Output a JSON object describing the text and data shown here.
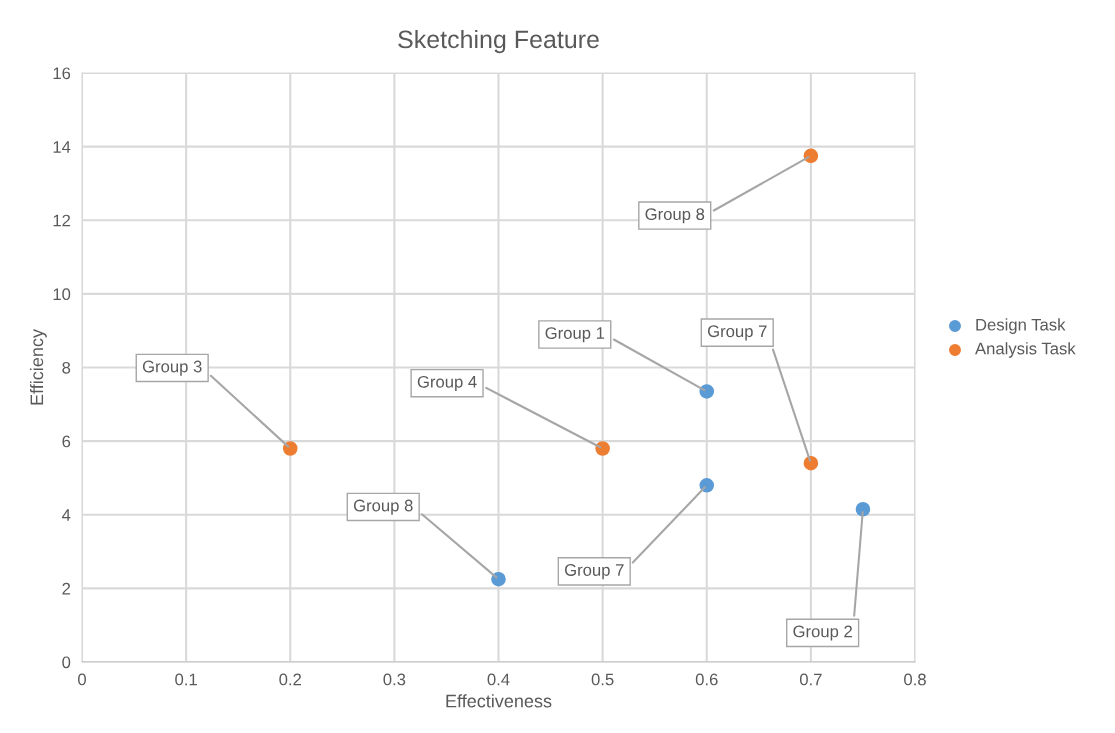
{
  "chart_data": {
    "type": "scatter",
    "title": "Sketching Feature",
    "xlabel": "Effectiveness",
    "ylabel": "Efficiency",
    "series": [
      {
        "name": "Design Task",
        "color": "#5b9bd5",
        "x": [
          0.6,
          0.6,
          0.4,
          0.75
        ],
        "values": [
          7.35,
          4.8,
          2.25,
          4.15
        ]
      },
      {
        "name": "Analysis Task",
        "color": "#ed7d31",
        "x": [
          0.7,
          0.2,
          0.5,
          0.7
        ],
        "values": [
          13.75,
          5.8,
          5.8,
          5.4
        ]
      }
    ],
    "annotations": [
      {
        "text": "Group 1",
        "x": 0.6,
        "y": 7.35
      },
      {
        "text": "Group 7",
        "x": 0.6,
        "y": 4.8
      },
      {
        "text": "Group 8",
        "x": 0.4,
        "y": 2.25
      },
      {
        "text": "Group 2",
        "x": 0.75,
        "y": 4.15
      },
      {
        "text": "Group 8",
        "x": 0.7,
        "y": 13.75
      },
      {
        "text": "Group 3",
        "x": 0.2,
        "y": 5.8
      },
      {
        "text": "Group 4",
        "x": 0.5,
        "y": 5.8
      },
      {
        "text": "Group 7",
        "x": 0.7,
        "y": 5.4
      }
    ],
    "xlim": [
      0,
      0.8
    ],
    "xticks": [
      0,
      0.1,
      0.2,
      0.3,
      0.4,
      0.5,
      0.6,
      0.7,
      0.8
    ],
    "ylim": [
      0,
      16
    ],
    "yticks": [
      0,
      2,
      4,
      6,
      8,
      10,
      12,
      14,
      16
    ],
    "grid": true,
    "legend": "right",
    "marker": "circle"
  }
}
